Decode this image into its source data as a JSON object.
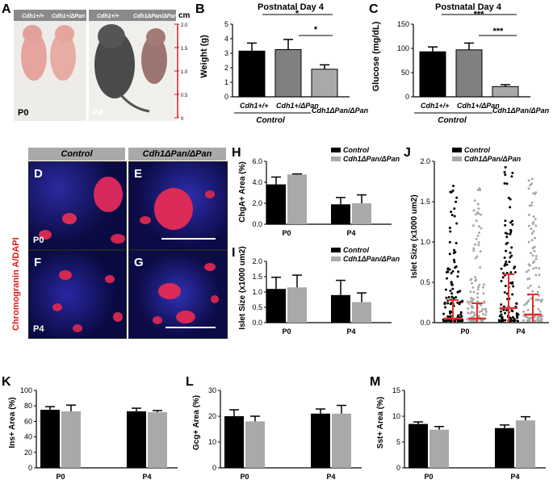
{
  "panelA": {
    "letter": "A",
    "geno_left_1": "Cdh1+/+",
    "geno_left_2": "Cdh1+/ΔPan",
    "geno_right_1": "Cdh1+/+",
    "geno_right_2": "Cdh1ΔPan/ΔPan",
    "age_left": "P0",
    "age_right": "P4",
    "scale_unit": "cm",
    "scale_ticks": [
      "2.0",
      "1.5",
      "1.0",
      "0.5",
      "0"
    ]
  },
  "panelB": {
    "letter": "B",
    "title": "Postnatal Day 4",
    "ylabel": "Weight (g)",
    "group_label": "Control",
    "sig1": "*",
    "sig2": "*",
    "colors": [
      "#000000",
      "#808080",
      "#a9a9a9"
    ]
  },
  "panelC": {
    "letter": "C",
    "title": "Postnatal Day 4",
    "ylabel": "Glucose (mg/dL)",
    "group_label": "Control",
    "sig1": "***",
    "sig2": "***"
  },
  "micro": {
    "header_control": "Control",
    "header_mutant": "Cdh1ΔPan/ΔPan",
    "side_label": "Chromogranin A/DAPI",
    "letters": [
      "D",
      "E",
      "F",
      "G"
    ],
    "age_top": "P0",
    "age_bottom": "P4"
  },
  "legend": {
    "control": "Control",
    "mutant": "Cdh1ΔPan/ΔPan"
  },
  "chart_data": [
    {
      "panel": "B",
      "type": "bar",
      "categories": [
        "Cdh1+/+",
        "Cdh1+/ΔPan",
        "Cdh1ΔPan/ΔPan"
      ],
      "values": [
        3.15,
        3.25,
        1.9
      ],
      "errors": [
        0.55,
        0.7,
        0.3
      ],
      "ylabel": "Weight (g)",
      "ylim": [
        0,
        5
      ],
      "yticks": [
        "0",
        "1",
        "2",
        "3",
        "4",
        "5"
      ]
    },
    {
      "panel": "C",
      "type": "bar",
      "categories": [
        "Cdh1+/+",
        "Cdh1+/ΔPan",
        "Cdh1ΔPan/ΔPan"
      ],
      "values": [
        93,
        97,
        21
      ],
      "errors": [
        10,
        14,
        4
      ],
      "ylabel": "Glucose (mg/dL)",
      "ylim": [
        0,
        150
      ],
      "yticks": [
        "0",
        "50",
        "100",
        "150"
      ]
    },
    {
      "panel": "H",
      "type": "bar",
      "categories": [
        "P0",
        "P4"
      ],
      "series": [
        {
          "name": "Control",
          "values": [
            3.8,
            1.9
          ],
          "errors": [
            0.7,
            0.65
          ]
        },
        {
          "name": "Cdh1ΔPan/ΔPan",
          "values": [
            4.75,
            2.0
          ],
          "errors": [
            0.05,
            0.8
          ]
        }
      ],
      "ylabel": "ChgA+ Area (%)",
      "ylim": [
        0,
        6
      ],
      "yticks": [
        "0.0",
        "2.0",
        "4.0",
        "6.0"
      ]
    },
    {
      "panel": "I",
      "type": "bar",
      "categories": [
        "P0",
        "P4"
      ],
      "series": [
        {
          "name": "Control",
          "values": [
            1.1,
            0.9
          ],
          "errors": [
            0.38,
            0.48
          ]
        },
        {
          "name": "Cdh1ΔPan/ΔPan",
          "values": [
            1.15,
            0.67
          ],
          "errors": [
            0.4,
            0.3
          ]
        }
      ],
      "ylabel": "Islet Size (x1000 um2)",
      "ylim": [
        0,
        2
      ],
      "yticks": [
        "0.0",
        "0.5",
        "1.0",
        "1.5",
        "2.0"
      ]
    },
    {
      "panel": "J",
      "type": "scatter",
      "categories": [
        "P0",
        "P4"
      ],
      "series": [
        {
          "name": "Control",
          "medians": [
            0.05,
            0.18
          ],
          "q3": [
            0.28,
            0.6
          ]
        },
        {
          "name": "Cdh1ΔPan/ΔPan",
          "medians": [
            0.05,
            0.1
          ],
          "q3": [
            0.24,
            0.35
          ]
        }
      ],
      "ylabel": "Islet Size (x1000 um2)",
      "ylim": [
        0,
        2
      ],
      "yticks": [
        "0.0",
        "0.5",
        "1.0",
        "1.5",
        "2.0"
      ]
    },
    {
      "panel": "K",
      "type": "bar",
      "categories": [
        "P0",
        "P4"
      ],
      "series": [
        {
          "name": "Control",
          "values": [
            75,
            73
          ],
          "errors": [
            4,
            4
          ]
        },
        {
          "name": "Cdh1ΔPan/ΔPan",
          "values": [
            73,
            72
          ],
          "errors": [
            8,
            2
          ]
        }
      ],
      "ylabel": "Ins+ Area (%)",
      "ylim": [
        0,
        100
      ],
      "yticks": [
        "0",
        "20",
        "40",
        "60",
        "80",
        "100"
      ]
    },
    {
      "panel": "L",
      "type": "bar",
      "categories": [
        "P0",
        "P4"
      ],
      "series": [
        {
          "name": "Control",
          "values": [
            20,
            21
          ],
          "errors": [
            2.5,
            1.8
          ]
        },
        {
          "name": "Cdh1ΔPan/ΔPan",
          "values": [
            18,
            21
          ],
          "errors": [
            2,
            3.2
          ]
        }
      ],
      "ylabel": "Gcg+ Area (%)",
      "ylim": [
        0,
        30
      ],
      "yticks": [
        "0",
        "10",
        "20",
        "30"
      ]
    },
    {
      "panel": "M",
      "type": "bar",
      "categories": [
        "P0",
        "P4"
      ],
      "series": [
        {
          "name": "Control",
          "values": [
            8.5,
            7.7
          ],
          "errors": [
            0.4,
            0.6
          ]
        },
        {
          "name": "Cdh1ΔPan/ΔPan",
          "values": [
            7.4,
            9.2
          ],
          "errors": [
            0.6,
            0.7
          ]
        }
      ],
      "ylabel": "Sst+ Area (%)",
      "ylim": [
        0,
        15
      ],
      "yticks": [
        "0",
        "5",
        "10",
        "15"
      ]
    }
  ]
}
